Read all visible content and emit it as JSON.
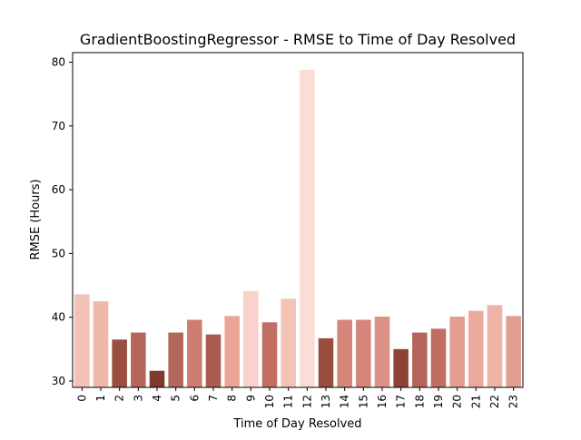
{
  "chart_data": {
    "type": "bar",
    "title": "GradientBoostingRegressor - RMSE to Time of Day Resolved",
    "xlabel": "Time of Day Resolved",
    "ylabel": "RMSE (Hours)",
    "ylim": [
      29,
      81.5
    ],
    "yticks": [
      30,
      40,
      50,
      60,
      70,
      80
    ],
    "grid": false,
    "categories": [
      "0",
      "1",
      "2",
      "3",
      "4",
      "5",
      "6",
      "7",
      "8",
      "9",
      "10",
      "11",
      "12",
      "13",
      "14",
      "15",
      "16",
      "17",
      "18",
      "19",
      "20",
      "21",
      "22",
      "23"
    ],
    "values": [
      43.6,
      42.5,
      36.5,
      37.6,
      31.6,
      37.6,
      39.6,
      37.3,
      40.2,
      44.1,
      39.2,
      42.9,
      78.8,
      36.7,
      39.6,
      39.6,
      40.1,
      35.0,
      37.6,
      38.2,
      40.1,
      41.0,
      41.9,
      40.2
    ],
    "colors": [
      "#f4c1b6",
      "#f0b8ab",
      "#9a4e40",
      "#b4665a",
      "#7f3a30",
      "#b4665a",
      "#cf7d70",
      "#a85c50",
      "#e9a597",
      "#f9d2cb",
      "#c26f62",
      "#f3c3b8",
      "#fcdcd6",
      "#9a4e40",
      "#d4867a",
      "#d4867a",
      "#dc9386",
      "#8f4336",
      "#b4665a",
      "#c06e62",
      "#e39e90",
      "#eaaa9c",
      "#eeb3a6",
      "#e39e90"
    ]
  }
}
